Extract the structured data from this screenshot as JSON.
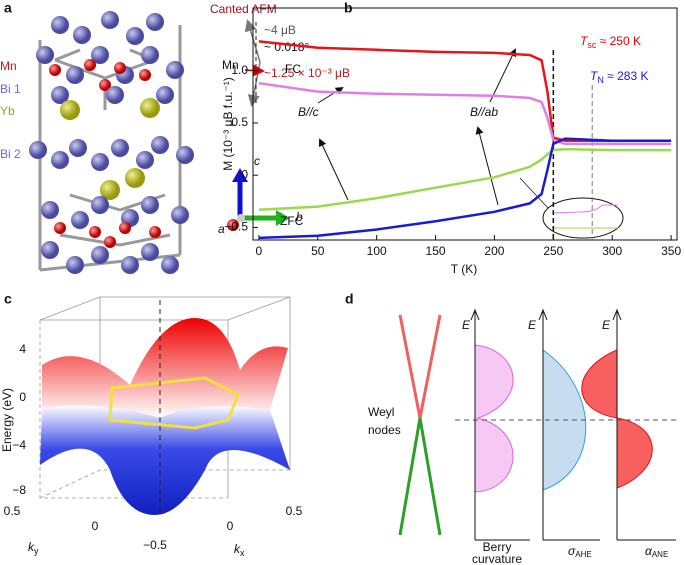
{
  "panel_a": {
    "label": "a",
    "species": [
      "Mn",
      "Bi 1",
      "Yb",
      "Bi 2"
    ],
    "canted": "Canted AFM",
    "moment_large": "~4 μB",
    "angle": "~ 0.018°",
    "mn": "Mn",
    "moment_small": "~1.25 × 10⁻³ μB",
    "axes": [
      "c",
      "a",
      "b"
    ]
  },
  "chart_data": {
    "type": "line",
    "panel_label": "b",
    "xlabel": "T (K)",
    "ylabel": "M (10⁻³ μB f.u.⁻¹)",
    "x": [
      0,
      50,
      100,
      150,
      200,
      230,
      240,
      245,
      250,
      260,
      300,
      350
    ],
    "series": [
      {
        "color": "#e8141c",
        "values": [
          1.28,
          1.22,
          1.2,
          1.18,
          1.17,
          1.15,
          1.1,
          0.8,
          0.36,
          0.33,
          0.33,
          0.33
        ]
      },
      {
        "color": "#e07ee8",
        "values": [
          0.88,
          0.8,
          0.78,
          0.77,
          0.76,
          0.74,
          0.7,
          0.55,
          0.34,
          0.3,
          0.3,
          0.3
        ]
      },
      {
        "color": "#9bd84a",
        "values": [
          -0.33,
          -0.3,
          -0.22,
          -0.12,
          -0.02,
          0.08,
          0.15,
          0.2,
          0.24,
          0.25,
          0.24,
          0.24
        ]
      },
      {
        "color": "#1a1ad0",
        "values": [
          -0.6,
          -0.58,
          -0.52,
          -0.44,
          -0.35,
          -0.27,
          -0.18,
          0.05,
          0.3,
          0.35,
          0.33,
          0.33
        ]
      }
    ],
    "xlim": [
      -5,
      355
    ],
    "xticks": [
      0,
      50,
      100,
      150,
      200,
      250,
      300,
      350
    ],
    "ylim": [
      -0.62,
      1.6
    ],
    "yticks": [
      {
        "value": -0.5,
        "label": "−0.5"
      },
      0,
      0.5,
      {
        "value": 1.0,
        "label": "1.0"
      }
    ],
    "reference_lines": [
      250,
      283
    ],
    "annotations": [
      "FC",
      "ZFC",
      "B//c",
      "B//ab"
    ],
    "tsc": {
      "main": "T",
      "sub": "sc",
      "rest": " ≈ 250 K"
    },
    "tn": {
      "main": "T",
      "sub": "N",
      "rest": " ≈ 283 K"
    }
  },
  "panel_c": {
    "label": "c",
    "ylabel": "Energy (eV)",
    "energy_ticks": [
      "4",
      "0",
      "−4",
      "−8"
    ],
    "ky_ticks": [
      "0.5",
      "0"
    ],
    "kx_ticks": [
      "−0.5",
      "0",
      "0.5"
    ],
    "ky": {
      "main": "k",
      "sub": "y"
    },
    "kx": {
      "main": "k",
      "sub": "x"
    }
  },
  "panel_d": {
    "label": "d",
    "nodes": [
      "Weyl",
      "nodes"
    ],
    "energy": [
      "E",
      "E",
      "E"
    ],
    "berry": [
      "Berry",
      "curvature"
    ],
    "ahe": {
      "main": "σ",
      "sub": "AHE"
    },
    "ane": {
      "main": "α",
      "sub": "ANE"
    }
  }
}
